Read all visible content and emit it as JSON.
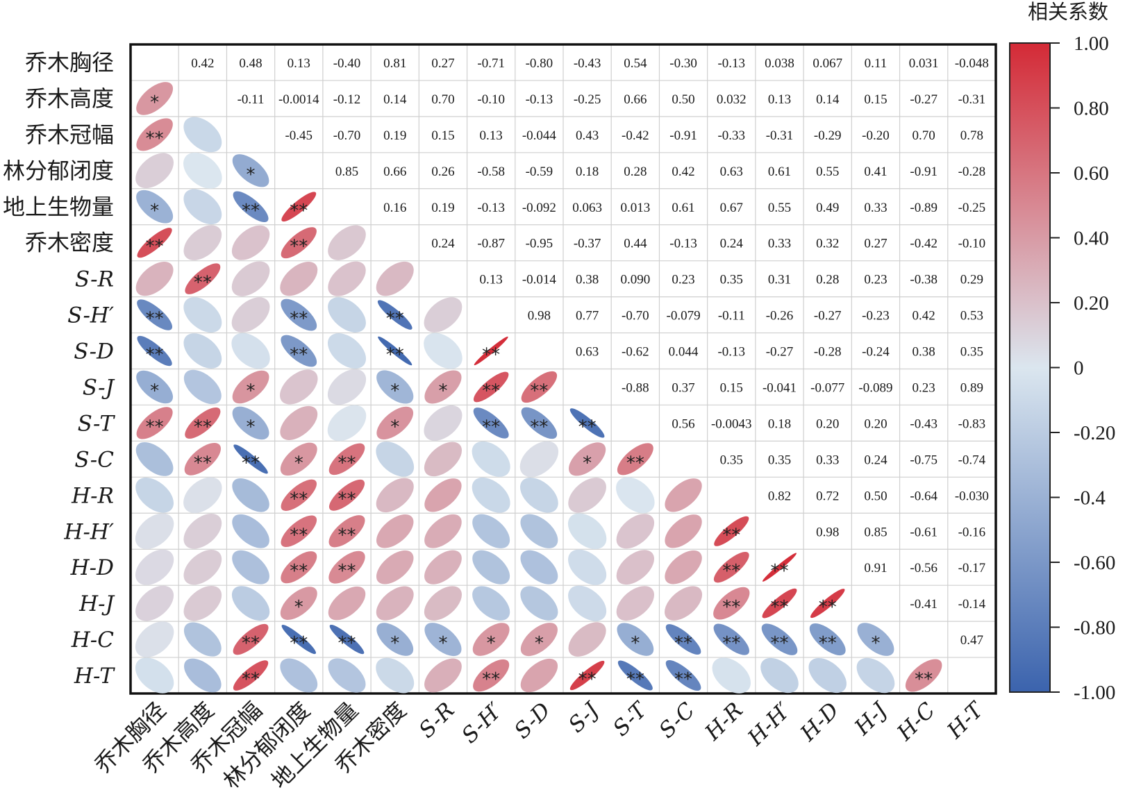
{
  "chart_data": {
    "type": "heatmap",
    "variables": [
      "乔木胸径",
      "乔木高度",
      "乔木冠幅",
      "林分郁闭度",
      "地上生物量",
      "乔木密度",
      "S-R",
      "S-H′",
      "S-D",
      "S-J",
      "S-T",
      "S-C",
      "H-R",
      "H-H′",
      "H-D",
      "H-J",
      "H-C",
      "H-T"
    ],
    "italic_variables": [
      false,
      false,
      false,
      false,
      false,
      false,
      true,
      true,
      true,
      true,
      true,
      true,
      true,
      true,
      true,
      true,
      true,
      true
    ],
    "upper_labels": [
      [
        "",
        "0.42",
        "0.48",
        "0.13",
        "-0.40",
        "0.81",
        "0.27",
        "-0.71",
        "-0.80",
        "-0.43",
        "0.54",
        "-0.30",
        "-0.13",
        "0.038",
        "0.067",
        "0.11",
        "0.031",
        "-0.048"
      ],
      [
        "",
        "",
        "-0.11",
        "-0.0014",
        "-0.12",
        "0.14",
        "0.70",
        "-0.10",
        "-0.13",
        "-0.25",
        "0.66",
        "0.50",
        "0.032",
        "0.13",
        "0.14",
        "0.15",
        "-0.27",
        "-0.31"
      ],
      [
        "",
        "",
        "",
        "-0.45",
        "-0.70",
        "0.19",
        "0.15",
        "0.13",
        "-0.044",
        "0.43",
        "-0.42",
        "-0.91",
        "-0.33",
        "-0.31",
        "-0.29",
        "-0.20",
        "0.70",
        "0.78"
      ],
      [
        "",
        "",
        "",
        "",
        "0.85",
        "0.66",
        "0.26",
        "-0.58",
        "-0.59",
        "0.18",
        "0.28",
        "0.42",
        "0.63",
        "0.61",
        "0.55",
        "0.41",
        "-0.91",
        "-0.28"
      ],
      [
        "",
        "",
        "",
        "",
        "",
        "0.16",
        "0.19",
        "-0.13",
        "-0.092",
        "0.063",
        "0.013",
        "0.61",
        "0.67",
        "0.55",
        "0.49",
        "0.33",
        "-0.89",
        "-0.25"
      ],
      [
        "",
        "",
        "",
        "",
        "",
        "",
        "0.24",
        "-0.87",
        "-0.95",
        "-0.37",
        "0.44",
        "-0.13",
        "0.24",
        "0.33",
        "0.32",
        "0.27",
        "-0.42",
        "-0.10"
      ],
      [
        "",
        "",
        "",
        "",
        "",
        "",
        "",
        "0.13",
        "-0.014",
        "0.38",
        "0.090",
        "0.23",
        "0.35",
        "0.31",
        "0.28",
        "0.23",
        "-0.38",
        "0.29"
      ],
      [
        "",
        "",
        "",
        "",
        "",
        "",
        "",
        "",
        "0.98",
        "0.77",
        "-0.70",
        "-0.079",
        "-0.11",
        "-0.26",
        "-0.27",
        "-0.23",
        "0.42",
        "0.53"
      ],
      [
        "",
        "",
        "",
        "",
        "",
        "",
        "",
        "",
        "",
        "0.63",
        "-0.62",
        "0.044",
        "-0.13",
        "-0.27",
        "-0.28",
        "-0.24",
        "0.38",
        "0.35"
      ],
      [
        "",
        "",
        "",
        "",
        "",
        "",
        "",
        "",
        "",
        "",
        "-0.88",
        "0.37",
        "0.15",
        "-0.041",
        "-0.077",
        "-0.089",
        "0.23",
        "0.89"
      ],
      [
        "",
        "",
        "",
        "",
        "",
        "",
        "",
        "",
        "",
        "",
        "",
        "0.56",
        "-0.0043",
        "0.18",
        "0.20",
        "0.20",
        "-0.43",
        "-0.83"
      ],
      [
        "",
        "",
        "",
        "",
        "",
        "",
        "",
        "",
        "",
        "",
        "",
        "",
        "0.35",
        "0.35",
        "0.33",
        "0.24",
        "-0.75",
        "-0.74"
      ],
      [
        "",
        "",
        "",
        "",
        "",
        "",
        "",
        "",
        "",
        "",
        "",
        "",
        "",
        "0.82",
        "0.72",
        "0.50",
        "-0.64",
        "-0.030"
      ],
      [
        "",
        "",
        "",
        "",
        "",
        "",
        "",
        "",
        "",
        "",
        "",
        "",
        "",
        "",
        "0.98",
        "0.85",
        "-0.61",
        "-0.16"
      ],
      [
        "",
        "",
        "",
        "",
        "",
        "",
        "",
        "",
        "",
        "",
        "",
        "",
        "",
        "",
        "",
        "0.91",
        "-0.56",
        "-0.17"
      ],
      [
        "",
        "",
        "",
        "",
        "",
        "",
        "",
        "",
        "",
        "",
        "",
        "",
        "",
        "",
        "",
        "",
        "-0.41",
        "-0.14"
      ],
      [
        "",
        "",
        "",
        "",
        "",
        "",
        "",
        "",
        "",
        "",
        "",
        "",
        "",
        "",
        "",
        "",
        "",
        "0.47"
      ],
      [
        "",
        "",
        "",
        "",
        "",
        "",
        "",
        "",
        "",
        "",
        "",
        "",
        "",
        "",
        "",
        "",
        "",
        ""
      ]
    ],
    "significance": [
      [
        "",
        "",
        "",
        "",
        "",
        "",
        "",
        "",
        "",
        "",
        "",
        "",
        "",
        "",
        "",
        "",
        "",
        ""
      ],
      [
        "*",
        "",
        "",
        "",
        "",
        "",
        "",
        "",
        "",
        "",
        "",
        "",
        "",
        "",
        "",
        "",
        "",
        ""
      ],
      [
        "**",
        "",
        "",
        "",
        "",
        "",
        "",
        "",
        "",
        "",
        "",
        "",
        "",
        "",
        "",
        "",
        "",
        ""
      ],
      [
        "",
        "",
        "*",
        "",
        "",
        "",
        "",
        "",
        "",
        "",
        "",
        "",
        "",
        "",
        "",
        "",
        "",
        ""
      ],
      [
        "*",
        "",
        "**",
        "**",
        "",
        "",
        "",
        "",
        "",
        "",
        "",
        "",
        "",
        "",
        "",
        "",
        "",
        ""
      ],
      [
        "**",
        "",
        "",
        "**",
        "",
        "",
        "",
        "",
        "",
        "",
        "",
        "",
        "",
        "",
        "",
        "",
        "",
        ""
      ],
      [
        "",
        "**",
        "",
        "",
        "",
        "",
        "",
        "",
        "",
        "",
        "",
        "",
        "",
        "",
        "",
        "",
        "",
        ""
      ],
      [
        "**",
        "",
        "",
        "**",
        "",
        "**",
        "",
        "",
        "",
        "",
        "",
        "",
        "",
        "",
        "",
        "",
        "",
        ""
      ],
      [
        "**",
        "",
        "",
        "**",
        "",
        "**",
        "",
        "**",
        "",
        "",
        "",
        "",
        "",
        "",
        "",
        "",
        "",
        ""
      ],
      [
        "*",
        "",
        "*",
        "",
        "",
        "*",
        "*",
        "**",
        "**",
        "",
        "",
        "",
        "",
        "",
        "",
        "",
        "",
        ""
      ],
      [
        "**",
        "**",
        "*",
        "",
        "",
        "*",
        "",
        "**",
        "**",
        "**",
        "",
        "",
        "",
        "",
        "",
        "",
        "",
        ""
      ],
      [
        "",
        "**",
        "**",
        "*",
        "**",
        "",
        "",
        "",
        "",
        "*",
        "**",
        "",
        "",
        "",
        "",
        "",
        "",
        ""
      ],
      [
        "",
        "",
        "",
        "**",
        "**",
        "",
        "",
        "",
        "",
        "",
        "",
        "",
        "",
        "",
        "",
        "",
        "",
        ""
      ],
      [
        "",
        "",
        "",
        "**",
        "**",
        "",
        "",
        "",
        "",
        "",
        "",
        "",
        "**",
        "",
        "",
        "",
        "",
        ""
      ],
      [
        "",
        "",
        "",
        "**",
        "**",
        "",
        "",
        "",
        "",
        "",
        "",
        "",
        "**",
        "**",
        "",
        "",
        "",
        ""
      ],
      [
        "",
        "",
        "",
        "*",
        "",
        "",
        "",
        "",
        "",
        "",
        "",
        "",
        "**",
        "**",
        "**",
        "",
        "",
        ""
      ],
      [
        "",
        "",
        "**",
        "**",
        "**",
        "*",
        "*",
        "*",
        "*",
        "",
        "*",
        "**",
        "**",
        "**",
        "**",
        "*",
        "",
        ""
      ],
      [
        "",
        "",
        "**",
        "",
        "",
        "",
        "",
        "**",
        "",
        "**",
        "**",
        "**",
        "",
        "",
        "",
        "",
        "**",
        ""
      ]
    ],
    "colorbar": {
      "title": "相关系数",
      "ticks": [
        "1.00",
        "0.80",
        "0.60",
        "0.40",
        "0.20",
        "0",
        "-0.20",
        "-0.4",
        "-0.60",
        "-0.80",
        "-1.00"
      ],
      "range": [
        -1,
        1
      ],
      "colors": {
        "negative": "#3b63ad",
        "neutral": "#dbe6ef",
        "positive": "#d42a36"
      }
    }
  }
}
